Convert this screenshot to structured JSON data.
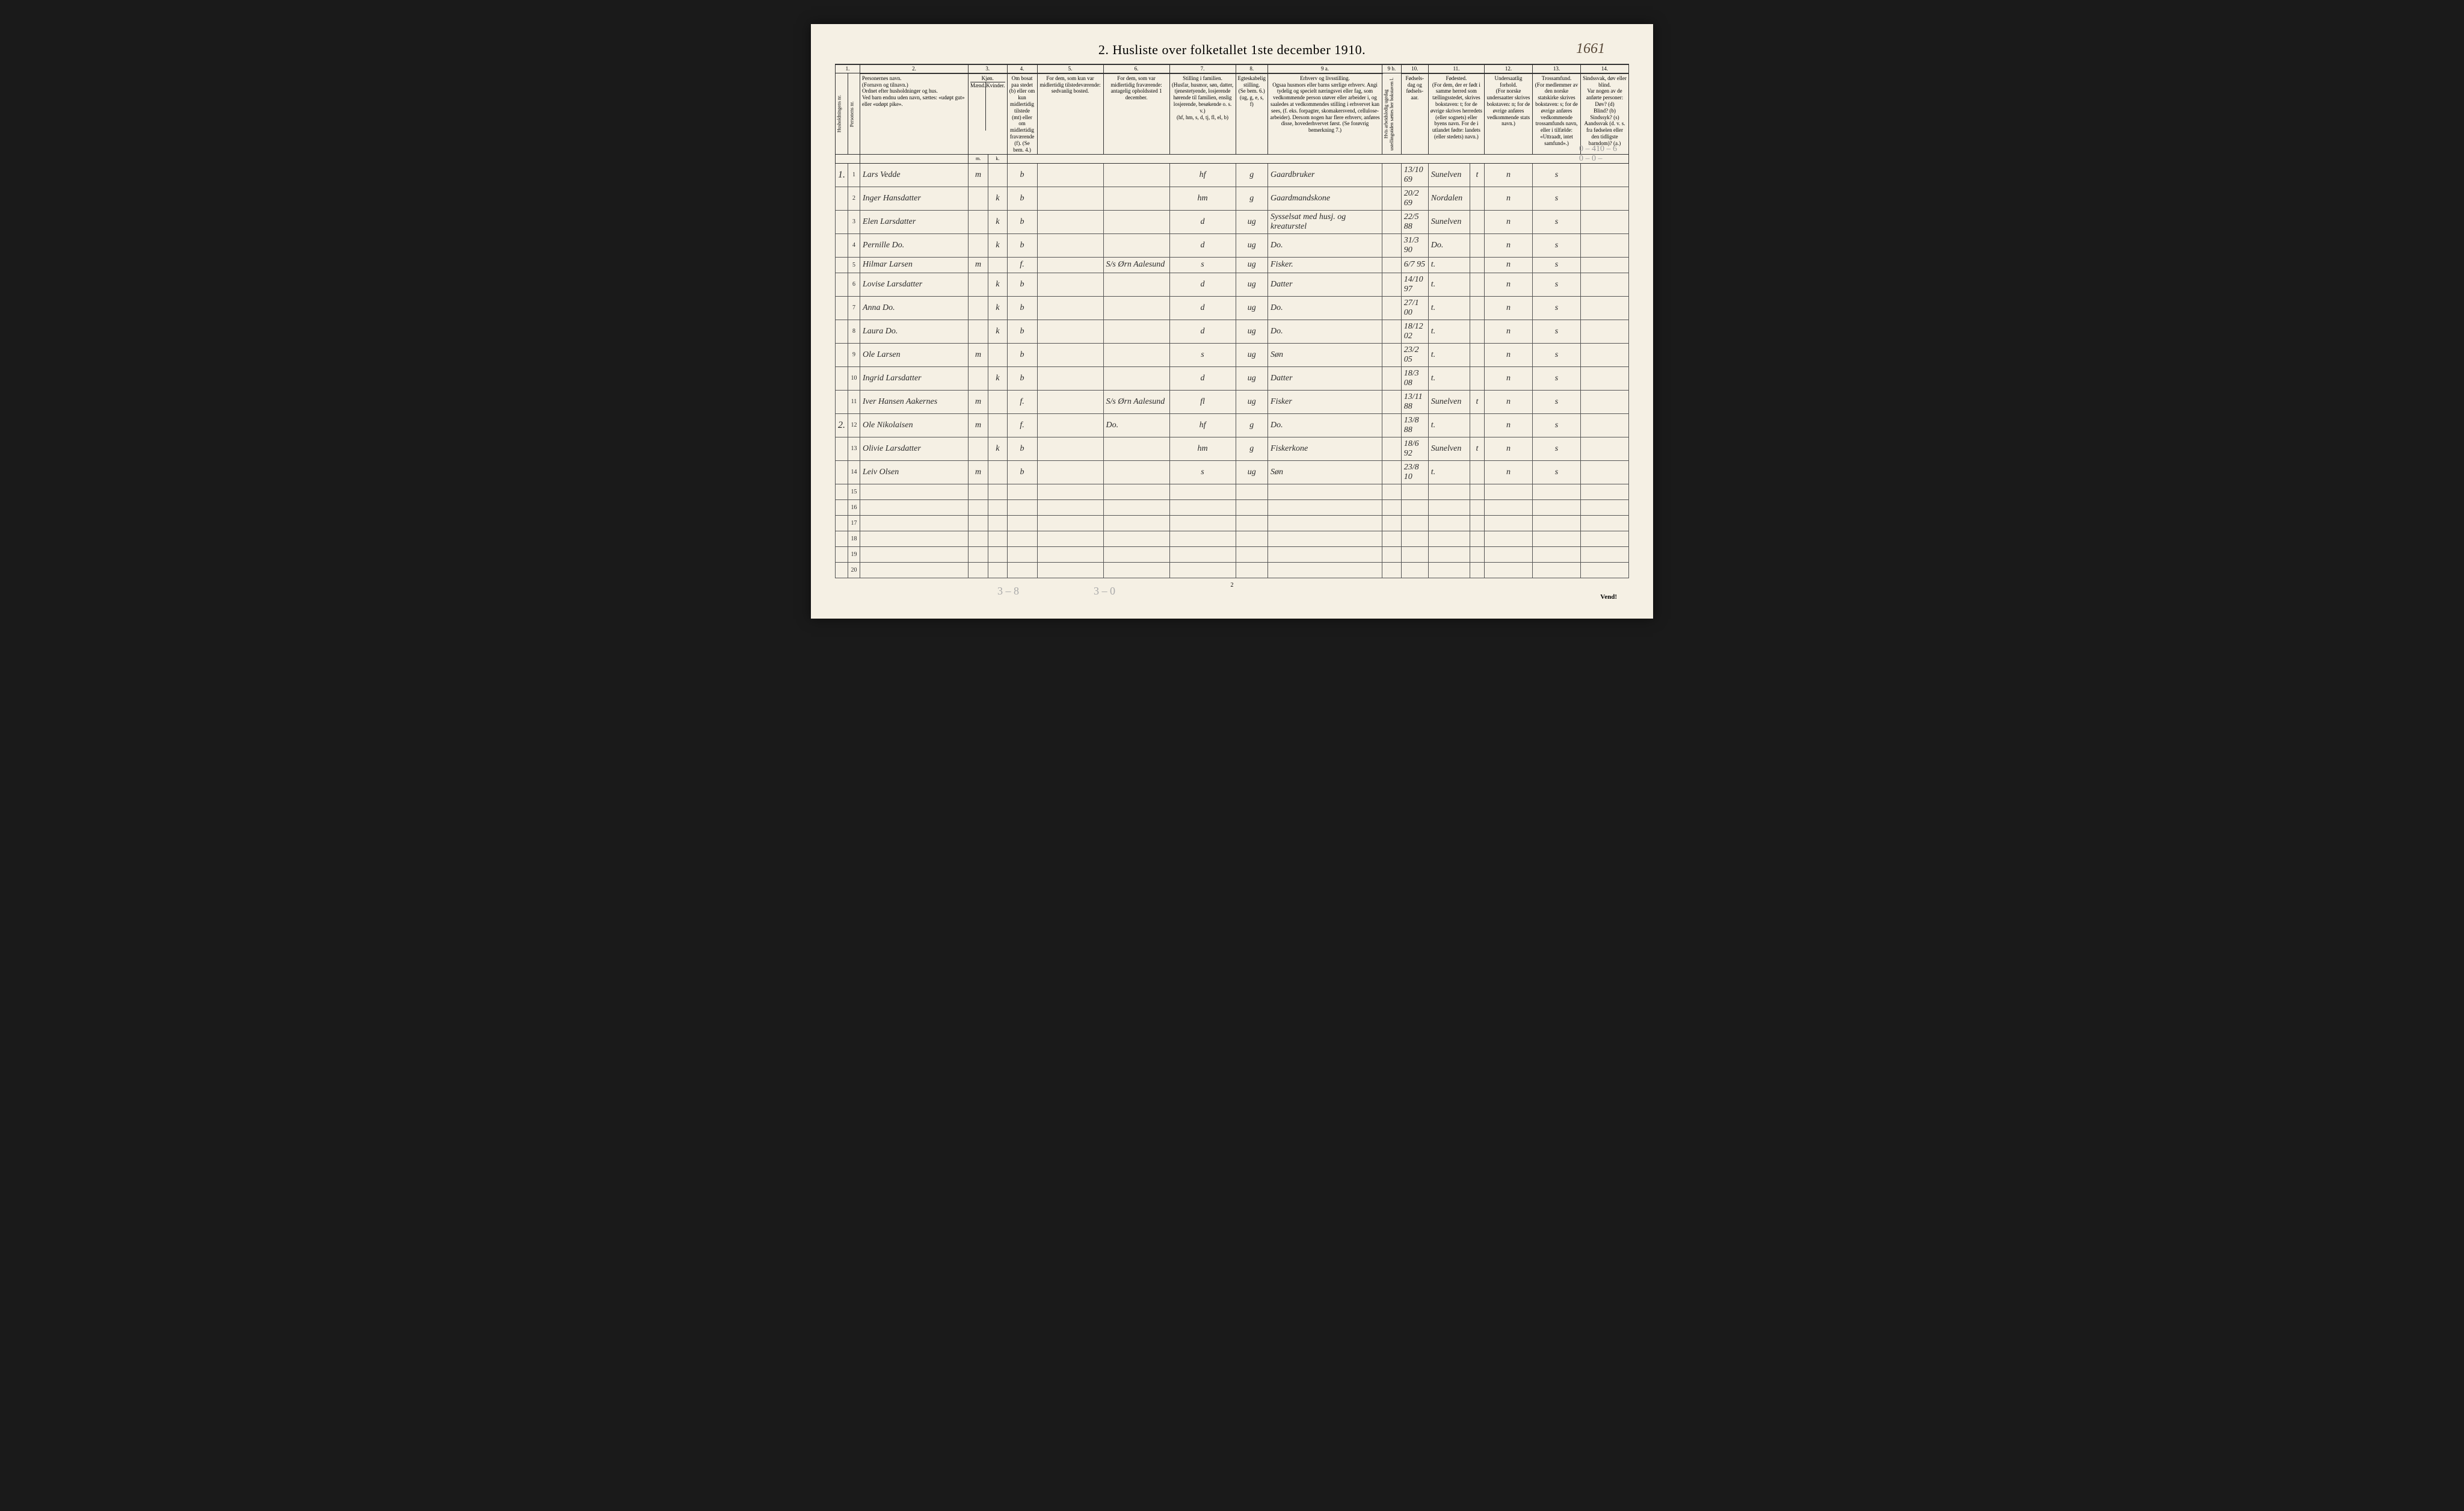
{
  "title": "2.  Husliste over folketallet 1ste december 1910.",
  "corner_number": "1661",
  "pencil_top": "0 – 410 – 6\n0 – 0 –",
  "colnums": [
    "1.",
    "2.",
    "3.",
    "4.",
    "5.",
    "6.",
    "7.",
    "8.",
    "9 a.",
    "9 b.",
    "10.",
    "11.",
    "12.",
    "13.",
    "14."
  ],
  "headers": {
    "h1": "Husholdningens nr.",
    "h1b": "Personens nr.",
    "h2": "Personernes navn.\n(Fornavn og tilnavn.)\nOrdnet efter husholdninger og hus.\nVed barn endnu uden navn, sættes: «udøpt gut» eller «udøpt pike».",
    "h3": "Kjøn.",
    "h3m": "Mænd.",
    "h3k": "Kvinder.",
    "h4": "Om bosat paa stedet (b) eller om kun midlertidig tilstede (mt) eller om midlertidig fraværende (f). (Se bem. 4.)",
    "h5": "For dem, som kun var midlertidig tilstedeværende:\nsedvanlig bosted.",
    "h6": "For dem, som var midlertidig fraværende:\nantagelig opholdssted 1 december.",
    "h7": "Stilling i familien.\n(Husfar, husmor, søn, datter, tjenestetyende, losjerende hørende til familien, enslig losjerende, besøkende o. s. v.)\n(hf, hm, s, d, tj, fl, el, b)",
    "h8": "Egteskabelig stilling.\n(Se bem. 6.)\n(ug, g, e, s, f)",
    "h9a": "Erhverv og livsstilling.\nOgsaa husmors eller barns særlige erhverv. Angi tydelig og specielt næringsvei eller fag, som vedkommende person utøver eller arbeider i, og saaledes at vedkommendes stilling i erhvervet kan sees, (f. eks. forpagter, skomakersvend, cellulose-arbeider). Dersom nogen har flere erhverv, anføres disse, hovederhvervet først. (Se forøvrig bemerkning 7.)",
    "h9b": "Hvis arbeidsledig ugedag ustellingstiden sættes her bokstaven l.",
    "h10": "Fødsels-dag og fødsels-aar.",
    "h11": "Fødested.\n(For dem, der er født i samme herred som tællingsstedet, skrives bokstaven: t; for de øvrige skrives herredets (eller sognets) eller byens navn. For de i utlandet fødte: landets (eller stedets) navn.)",
    "h12": "Undersaatlig forhold.\n(For norske undersaatter skrives bokstaven: n; for de øvrige anføres vedkommende stats navn.)",
    "h13": "Trossamfund.\n(For medlemmer av den norske statskirke skrives bokstaven: s; for de øvrige anføres vedkommende trossamfunds navn, eller i tilfælde: «Uttraadt, intet samfund».)",
    "h14": "Sindssvak, døv eller blind.\nVar nogen av de anførte personer:\nDøv? (d)\nBlind? (b)\nSindssyk? (s)\nAandssvak (d. v. s. fra fødselen eller den tidligste barndom)? (a.)"
  },
  "rows": [
    {
      "hh": "1.",
      "n": "1",
      "name": "Lars Vedde",
      "m": "m",
      "k": "",
      "res": "b",
      "c5": "",
      "c6": "",
      "fam": "hf",
      "mar": "g",
      "occ": "Gaardbruker",
      "c9b": "",
      "dob": "13/10 69",
      "birthplace": "Sunelven",
      "sup": "t",
      "nat": "n",
      "rel": "s",
      "c14": ""
    },
    {
      "hh": "",
      "n": "2",
      "name": "Inger Hansdatter",
      "m": "",
      "k": "k",
      "res": "b",
      "c5": "",
      "c6": "",
      "fam": "hm",
      "mar": "g",
      "occ": "Gaardmandskone",
      "c9b": "",
      "dob": "20/2 69",
      "birthplace": "Nordalen",
      "sup": "",
      "nat": "n",
      "rel": "s",
      "c14": ""
    },
    {
      "hh": "",
      "n": "3",
      "name": "Elen Larsdatter",
      "m": "",
      "k": "k",
      "res": "b",
      "c5": "",
      "c6": "",
      "fam": "d",
      "mar": "ug",
      "occ": "Sysselsat med husj. og kreaturstel",
      "c9b": "",
      "dob": "22/5 88",
      "birthplace": "Sunelven",
      "sup": "",
      "nat": "n",
      "rel": "s",
      "c14": ""
    },
    {
      "hh": "",
      "n": "4",
      "name": "Pernille Do.",
      "m": "",
      "k": "k",
      "res": "b",
      "c5": "",
      "c6": "",
      "fam": "d",
      "mar": "ug",
      "occ": "Do.",
      "c9b": "",
      "dob": "31/3 90",
      "birthplace": "Do.",
      "sup": "",
      "nat": "n",
      "rel": "s",
      "c14": ""
    },
    {
      "hh": "",
      "n": "5",
      "name": "Hilmar Larsen",
      "m": "m",
      "k": "",
      "res": "f.",
      "c5": "",
      "c6": "S/s Ørn Aalesund",
      "fam": "s",
      "mar": "ug",
      "occ": "Fisker.",
      "c9b": "",
      "dob": "6/7 95",
      "birthplace": "t.",
      "sup": "",
      "nat": "n",
      "rel": "s",
      "c14": ""
    },
    {
      "hh": "",
      "n": "6",
      "name": "Lovise Larsdatter",
      "m": "",
      "k": "k",
      "res": "b",
      "c5": "",
      "c6": "",
      "fam": "d",
      "mar": "ug",
      "occ": "Datter",
      "c9b": "",
      "dob": "14/10 97",
      "birthplace": "t.",
      "sup": "",
      "nat": "n",
      "rel": "s",
      "c14": ""
    },
    {
      "hh": "",
      "n": "7",
      "name": "Anna Do.",
      "m": "",
      "k": "k",
      "res": "b",
      "c5": "",
      "c6": "",
      "fam": "d",
      "mar": "ug",
      "occ": "Do.",
      "c9b": "",
      "dob": "27/1 00",
      "birthplace": "t.",
      "sup": "",
      "nat": "n",
      "rel": "s",
      "c14": ""
    },
    {
      "hh": "",
      "n": "8",
      "name": "Laura Do.",
      "m": "",
      "k": "k",
      "res": "b",
      "c5": "",
      "c6": "",
      "fam": "d",
      "mar": "ug",
      "occ": "Do.",
      "c9b": "",
      "dob": "18/12 02",
      "birthplace": "t.",
      "sup": "",
      "nat": "n",
      "rel": "s",
      "c14": ""
    },
    {
      "hh": "",
      "n": "9",
      "name": "Ole Larsen",
      "m": "m",
      "k": "",
      "res": "b",
      "c5": "",
      "c6": "",
      "fam": "s",
      "mar": "ug",
      "occ": "Søn",
      "c9b": "",
      "dob": "23/2 05",
      "birthplace": "t.",
      "sup": "",
      "nat": "n",
      "rel": "s",
      "c14": ""
    },
    {
      "hh": "",
      "n": "10",
      "name": "Ingrid Larsdatter",
      "m": "",
      "k": "k",
      "res": "b",
      "c5": "",
      "c6": "",
      "fam": "d",
      "mar": "ug",
      "occ": "Datter",
      "c9b": "",
      "dob": "18/3 08",
      "birthplace": "t.",
      "sup": "",
      "nat": "n",
      "rel": "s",
      "c14": ""
    },
    {
      "hh": "",
      "n": "11",
      "name": "Iver Hansen Aakernes",
      "m": "m",
      "k": "",
      "res": "f.",
      "c5": "",
      "c6": "S/s Ørn Aalesund",
      "fam": "fl",
      "mar": "ug",
      "occ": "Fisker",
      "c9b": "",
      "dob": "13/11 88",
      "birthplace": "Sunelven",
      "sup": "t",
      "nat": "n",
      "rel": "s",
      "c14": ""
    },
    {
      "hh": "2.",
      "n": "12",
      "name": "Ole Nikolaisen",
      "m": "m",
      "k": "",
      "res": "f.",
      "c5": "",
      "c6": "Do.",
      "fam": "hf",
      "mar": "g",
      "occ": "Do.",
      "c9b": "",
      "dob": "13/8 88",
      "birthplace": "t.",
      "sup": "",
      "nat": "n",
      "rel": "s",
      "c14": ""
    },
    {
      "hh": "",
      "n": "13",
      "name": "Olivie Larsdatter",
      "m": "",
      "k": "k",
      "res": "b",
      "c5": "",
      "c6": "",
      "fam": "hm",
      "mar": "g",
      "occ": "Fiskerkone",
      "c9b": "",
      "dob": "18/6 92",
      "birthplace": "Sunelven",
      "sup": "t",
      "nat": "n",
      "rel": "s",
      "c14": ""
    },
    {
      "hh": "",
      "n": "14",
      "name": "Leiv Olsen",
      "m": "m",
      "k": "",
      "res": "b",
      "c5": "",
      "c6": "",
      "fam": "s",
      "mar": "ug",
      "occ": "Søn",
      "c9b": "",
      "dob": "23/8 10",
      "birthplace": "t.",
      "sup": "",
      "nat": "n",
      "rel": "s",
      "c14": ""
    },
    {
      "hh": "",
      "n": "15",
      "name": "",
      "m": "",
      "k": "",
      "res": "",
      "c5": "",
      "c6": "",
      "fam": "",
      "mar": "",
      "occ": "",
      "c9b": "",
      "dob": "",
      "birthplace": "",
      "sup": "",
      "nat": "",
      "rel": "",
      "c14": ""
    },
    {
      "hh": "",
      "n": "16",
      "name": "",
      "m": "",
      "k": "",
      "res": "",
      "c5": "",
      "c6": "",
      "fam": "",
      "mar": "",
      "occ": "",
      "c9b": "",
      "dob": "",
      "birthplace": "",
      "sup": "",
      "nat": "",
      "rel": "",
      "c14": ""
    },
    {
      "hh": "",
      "n": "17",
      "name": "",
      "m": "",
      "k": "",
      "res": "",
      "c5": "",
      "c6": "",
      "fam": "",
      "mar": "",
      "occ": "",
      "c9b": "",
      "dob": "",
      "birthplace": "",
      "sup": "",
      "nat": "",
      "rel": "",
      "c14": ""
    },
    {
      "hh": "",
      "n": "18",
      "name": "",
      "m": "",
      "k": "",
      "res": "",
      "c5": "",
      "c6": "",
      "fam": "",
      "mar": "",
      "occ": "",
      "c9b": "",
      "dob": "",
      "birthplace": "",
      "sup": "",
      "nat": "",
      "rel": "",
      "c14": ""
    },
    {
      "hh": "",
      "n": "19",
      "name": "",
      "m": "",
      "k": "",
      "res": "",
      "c5": "",
      "c6": "",
      "fam": "",
      "mar": "",
      "occ": "",
      "c9b": "",
      "dob": "",
      "birthplace": "",
      "sup": "",
      "nat": "",
      "rel": "",
      "c14": ""
    },
    {
      "hh": "",
      "n": "20",
      "name": "",
      "m": "",
      "k": "",
      "res": "",
      "c5": "",
      "c6": "",
      "fam": "",
      "mar": "",
      "occ": "",
      "c9b": "",
      "dob": "",
      "birthplace": "",
      "sup": "",
      "nat": "",
      "rel": "",
      "c14": ""
    }
  ],
  "footer_page": "2",
  "vend": "Vend!",
  "pencil_b1": "3 – 8",
  "pencil_b2": "3 – 0"
}
